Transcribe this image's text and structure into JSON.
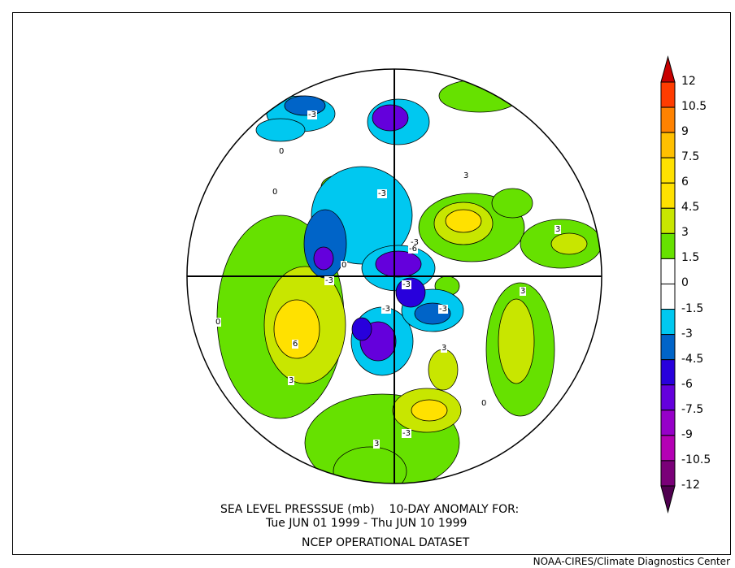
{
  "title": {
    "line1": "SEA LEVEL PRESSSUE (mb)    10-DAY ANOMALY FOR:",
    "line2": "Tue JUN 01 1999 - Thu JUN 10 1999",
    "line3": "NCEP OPERATIONAL DATASET"
  },
  "credit": "NOAA-CIRES/Climate Diagnostics Center",
  "colorbar": {
    "labels": [
      "12",
      "10.5",
      "9",
      "7.5",
      "6",
      "4.5",
      "3",
      "1.5",
      "0",
      "-1.5",
      "-3",
      "-4.5",
      "-6",
      "-7.5",
      "-9",
      "-10.5",
      "-12"
    ],
    "colors": [
      "#ff3c00",
      "#ff8200",
      "#ffc000",
      "#ffe100",
      "#ffe100",
      "#c8e600",
      "#66e100",
      "#ffffff",
      "#ffffff",
      "#00c8f0",
      "#0064c8",
      "#2800dc",
      "#6400dc",
      "#9600c8",
      "#b400b4",
      "#7a0078"
    ],
    "over_color": "#c80000",
    "under_color": "#500050"
  },
  "map": {
    "contour_labels": [
      "-3",
      "-3",
      "-3",
      "-3",
      "-6",
      "-3",
      "-3",
      "-3",
      "0",
      "0",
      "0",
      "0",
      "0",
      "3",
      "3",
      "3",
      "3",
      "3",
      "3",
      "6",
      "-3"
    ]
  }
}
